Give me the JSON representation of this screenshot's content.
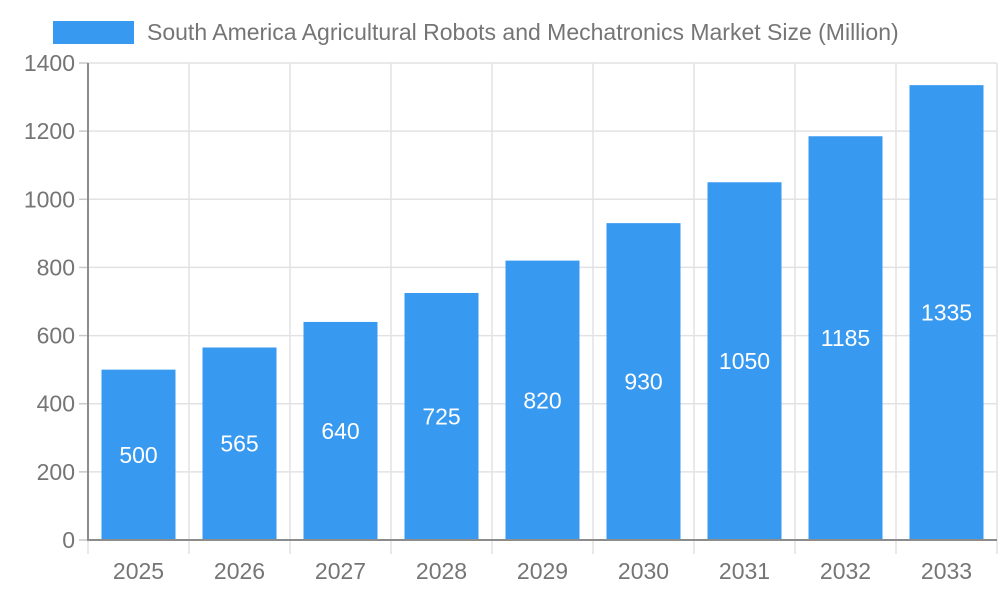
{
  "chart_data": {
    "type": "bar",
    "title": "South America Agricultural Robots and Mechatronics Market Size (Million)",
    "legend_position": "top-left",
    "categories": [
      "2025",
      "2026",
      "2027",
      "2028",
      "2029",
      "2030",
      "2031",
      "2032",
      "2033"
    ],
    "series": [
      {
        "name": "South America Agricultural Robots and Mechatronics Market Size (Million)",
        "values": [
          500,
          565,
          640,
          725,
          820,
          930,
          1050,
          1185,
          1335
        ]
      }
    ],
    "xlabel": "",
    "ylabel": "",
    "ylim": [
      0,
      1400
    ],
    "y_ticks": [
      0,
      200,
      400,
      600,
      800,
      1000,
      1200,
      1400
    ],
    "grid": true,
    "data_labels_position": "inside-center",
    "colors": {
      "bar": "#3899F0",
      "bar_label_text": "#FFFFFF",
      "axis_text": "#757575",
      "gridline": "#E2E2E2",
      "axis_line": "#8C8C8C",
      "y_tick_mark": "#C9C9C9",
      "background": "#FFFFFF"
    }
  }
}
